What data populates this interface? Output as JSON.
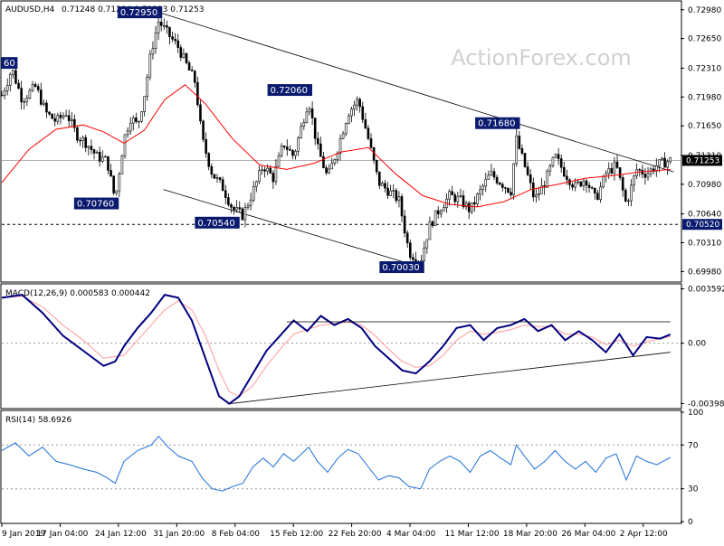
{
  "chart_data": {
    "type": "candlestick",
    "title": "AUDUSD,H4",
    "ohlc_header": "0.71248 0.71294 0.71223 0.71253",
    "watermark": "ActionForex.com",
    "price_pane": {
      "ylim": [
        0.6988,
        0.7305
      ],
      "y_ticks": [
        "0.72980",
        "0.72650",
        "0.72310",
        "0.71980",
        "0.71650",
        "0.71310",
        "0.70980",
        "0.70640",
        "0.70310",
        "0.69980"
      ],
      "y_tick_values": [
        0.7298,
        0.7265,
        0.7231,
        0.7198,
        0.7165,
        0.7131,
        0.7098,
        0.7064,
        0.7031,
        0.6998
      ],
      "current_price": "0.71253",
      "current_price_value": 0.71253,
      "support_level": "0.70520",
      "support_value": 0.7052,
      "callouts": [
        {
          "label": "0.72950",
          "x": 0.231,
          "y": 0.7295
        },
        {
          "label": "0.72060",
          "x": 0.452,
          "y": 0.7206
        },
        {
          "label": "0.71680",
          "x": 0.758,
          "y": 0.7168
        },
        {
          "label": "0.70760",
          "x": 0.167,
          "y": 0.7076
        },
        {
          "label": "0.70540",
          "x": 0.345,
          "y": 0.7054
        },
        {
          "label": "0.70030",
          "x": 0.617,
          "y": 0.7003
        },
        {
          "label": "60",
          "x": 0.0,
          "y": 0.7237
        }
      ],
      "moving_average": [
        [
          0.0,
          0.71
        ],
        [
          0.04,
          0.7138
        ],
        [
          0.08,
          0.7161
        ],
        [
          0.12,
          0.7166
        ],
        [
          0.15,
          0.7158
        ],
        [
          0.18,
          0.7145
        ],
        [
          0.21,
          0.716
        ],
        [
          0.24,
          0.7195
        ],
        [
          0.27,
          0.7212
        ],
        [
          0.3,
          0.719
        ],
        [
          0.34,
          0.715
        ],
        [
          0.38,
          0.712
        ],
        [
          0.42,
          0.7115
        ],
        [
          0.46,
          0.7122
        ],
        [
          0.5,
          0.7135
        ],
        [
          0.54,
          0.714
        ],
        [
          0.58,
          0.711
        ],
        [
          0.62,
          0.7085
        ],
        [
          0.66,
          0.7075
        ],
        [
          0.7,
          0.7072
        ],
        [
          0.74,
          0.7078
        ],
        [
          0.78,
          0.7092
        ],
        [
          0.82,
          0.7098
        ],
        [
          0.86,
          0.7105
        ],
        [
          0.9,
          0.7108
        ],
        [
          0.94,
          0.7112
        ],
        [
          0.985,
          0.7115
        ]
      ],
      "closes": [
        [
          0.0,
          0.72
        ],
        [
          0.015,
          0.723
        ],
        [
          0.03,
          0.7195
        ],
        [
          0.05,
          0.721
        ],
        [
          0.065,
          0.718
        ],
        [
          0.08,
          0.717
        ],
        [
          0.095,
          0.718
        ],
        [
          0.11,
          0.7155
        ],
        [
          0.125,
          0.7145
        ],
        [
          0.14,
          0.713
        ],
        [
          0.155,
          0.7125
        ],
        [
          0.167,
          0.708
        ],
        [
          0.18,
          0.715
        ],
        [
          0.19,
          0.7175
        ],
        [
          0.2,
          0.7165
        ],
        [
          0.21,
          0.72
        ],
        [
          0.22,
          0.725
        ],
        [
          0.231,
          0.7285
        ],
        [
          0.245,
          0.727
        ],
        [
          0.26,
          0.7255
        ],
        [
          0.275,
          0.723
        ],
        [
          0.285,
          0.7215
        ],
        [
          0.295,
          0.715
        ],
        [
          0.31,
          0.711
        ],
        [
          0.325,
          0.7095
        ],
        [
          0.34,
          0.707
        ],
        [
          0.355,
          0.7062
        ],
        [
          0.37,
          0.709
        ],
        [
          0.385,
          0.712
        ],
        [
          0.4,
          0.7105
        ],
        [
          0.415,
          0.7145
        ],
        [
          0.43,
          0.713
        ],
        [
          0.452,
          0.7195
        ],
        [
          0.465,
          0.714
        ],
        [
          0.48,
          0.7105
        ],
        [
          0.495,
          0.714
        ],
        [
          0.51,
          0.718
        ],
        [
          0.525,
          0.7195
        ],
        [
          0.54,
          0.715
        ],
        [
          0.555,
          0.71
        ],
        [
          0.57,
          0.709
        ],
        [
          0.585,
          0.708
        ],
        [
          0.6,
          0.702
        ],
        [
          0.617,
          0.701
        ],
        [
          0.63,
          0.705
        ],
        [
          0.645,
          0.707
        ],
        [
          0.66,
          0.7085
        ],
        [
          0.675,
          0.708
        ],
        [
          0.69,
          0.7068
        ],
        [
          0.705,
          0.709
        ],
        [
          0.72,
          0.711
        ],
        [
          0.735,
          0.71
        ],
        [
          0.75,
          0.709
        ],
        [
          0.758,
          0.715
        ],
        [
          0.77,
          0.712
        ],
        [
          0.785,
          0.708
        ],
        [
          0.8,
          0.71
        ],
        [
          0.815,
          0.713
        ],
        [
          0.83,
          0.711
        ],
        [
          0.845,
          0.7095
        ],
        [
          0.86,
          0.7105
        ],
        [
          0.875,
          0.708
        ],
        [
          0.89,
          0.711
        ],
        [
          0.905,
          0.712
        ],
        [
          0.92,
          0.7075
        ],
        [
          0.935,
          0.7115
        ],
        [
          0.95,
          0.711
        ],
        [
          0.965,
          0.712
        ],
        [
          0.985,
          0.71253
        ]
      ]
    },
    "macd_pane": {
      "label": "MACD(12,26,9) 0.000583 0.000442",
      "ylim": [
        -0.0042,
        0.0038
      ],
      "y_ticks": [
        "0.003592",
        "0.00",
        "-0.003986"
      ],
      "y_tick_values": [
        0.003592,
        0.0,
        -0.003986
      ],
      "macd": [
        [
          0.0,
          0.003
        ],
        [
          0.03,
          0.0032
        ],
        [
          0.06,
          0.002
        ],
        [
          0.09,
          0.0005
        ],
        [
          0.12,
          -0.0005
        ],
        [
          0.15,
          -0.0015
        ],
        [
          0.167,
          -0.0012
        ],
        [
          0.18,
          -0.0002
        ],
        [
          0.2,
          0.001
        ],
        [
          0.22,
          0.002
        ],
        [
          0.24,
          0.0032
        ],
        [
          0.26,
          0.003
        ],
        [
          0.28,
          0.0015
        ],
        [
          0.3,
          -0.001
        ],
        [
          0.32,
          -0.0035
        ],
        [
          0.335,
          -0.004
        ],
        [
          0.35,
          -0.0035
        ],
        [
          0.37,
          -0.002
        ],
        [
          0.39,
          -0.0005
        ],
        [
          0.41,
          0.0005
        ],
        [
          0.43,
          0.0015
        ],
        [
          0.45,
          0.0008
        ],
        [
          0.47,
          0.0018
        ],
        [
          0.49,
          0.0012
        ],
        [
          0.51,
          0.0016
        ],
        [
          0.53,
          0.001
        ],
        [
          0.55,
          -0.0002
        ],
        [
          0.57,
          -0.001
        ],
        [
          0.59,
          -0.0018
        ],
        [
          0.61,
          -0.002
        ],
        [
          0.63,
          -0.0012
        ],
        [
          0.65,
          -0.0002
        ],
        [
          0.67,
          0.001
        ],
        [
          0.69,
          0.0012
        ],
        [
          0.71,
          0.0002
        ],
        [
          0.73,
          0.001
        ],
        [
          0.75,
          0.0012
        ],
        [
          0.77,
          0.0016
        ],
        [
          0.79,
          0.0008
        ],
        [
          0.81,
          0.0012
        ],
        [
          0.83,
          0.0002
        ],
        [
          0.85,
          0.0008
        ],
        [
          0.87,
          0.0002
        ],
        [
          0.89,
          -0.0006
        ],
        [
          0.91,
          0.0006
        ],
        [
          0.93,
          -0.0008
        ],
        [
          0.95,
          0.0004
        ],
        [
          0.97,
          0.0003
        ],
        [
          0.985,
          0.00058
        ]
      ],
      "signal": [
        [
          0.0,
          0.003
        ],
        [
          0.03,
          0.0031
        ],
        [
          0.06,
          0.0024
        ],
        [
          0.09,
          0.0012
        ],
        [
          0.12,
          0.0002
        ],
        [
          0.15,
          -0.001
        ],
        [
          0.18,
          -0.0008
        ],
        [
          0.2,
          0.0002
        ],
        [
          0.22,
          0.0012
        ],
        [
          0.24,
          0.0022
        ],
        [
          0.26,
          0.0028
        ],
        [
          0.28,
          0.0022
        ],
        [
          0.3,
          0.0005
        ],
        [
          0.32,
          -0.0018
        ],
        [
          0.335,
          -0.0032
        ],
        [
          0.35,
          -0.0035
        ],
        [
          0.37,
          -0.0028
        ],
        [
          0.39,
          -0.0015
        ],
        [
          0.41,
          -0.0004
        ],
        [
          0.43,
          0.0006
        ],
        [
          0.45,
          0.0009
        ],
        [
          0.47,
          0.0012
        ],
        [
          0.49,
          0.0013
        ],
        [
          0.51,
          0.0014
        ],
        [
          0.53,
          0.0012
        ],
        [
          0.55,
          0.0005
        ],
        [
          0.57,
          -0.0004
        ],
        [
          0.59,
          -0.0012
        ],
        [
          0.61,
          -0.0016
        ],
        [
          0.63,
          -0.0015
        ],
        [
          0.65,
          -0.0008
        ],
        [
          0.67,
          0.0002
        ],
        [
          0.69,
          0.0008
        ],
        [
          0.71,
          0.0006
        ],
        [
          0.73,
          0.0007
        ],
        [
          0.75,
          0.0009
        ],
        [
          0.77,
          0.0012
        ],
        [
          0.79,
          0.0011
        ],
        [
          0.81,
          0.0011
        ],
        [
          0.83,
          0.0006
        ],
        [
          0.85,
          0.0006
        ],
        [
          0.87,
          0.0004
        ],
        [
          0.89,
          -0.0001
        ],
        [
          0.91,
          0.0002
        ],
        [
          0.93,
          -0.0002
        ],
        [
          0.95,
          0.0001
        ],
        [
          0.97,
          0.0003
        ],
        [
          0.985,
          0.00044
        ]
      ]
    },
    "rsi_pane": {
      "label": "RSI(14) 58.6926",
      "ylim": [
        0,
        100
      ],
      "y_ticks": [
        "100",
        "70",
        "30",
        "0"
      ],
      "y_tick_values": [
        100,
        70,
        30,
        0
      ],
      "rsi": [
        [
          0.0,
          65
        ],
        [
          0.02,
          72
        ],
        [
          0.04,
          60
        ],
        [
          0.06,
          68
        ],
        [
          0.08,
          55
        ],
        [
          0.1,
          52
        ],
        [
          0.12,
          48
        ],
        [
          0.14,
          45
        ],
        [
          0.155,
          40
        ],
        [
          0.167,
          35
        ],
        [
          0.18,
          55
        ],
        [
          0.2,
          65
        ],
        [
          0.22,
          70
        ],
        [
          0.231,
          78
        ],
        [
          0.245,
          68
        ],
        [
          0.26,
          60
        ],
        [
          0.28,
          55
        ],
        [
          0.295,
          40
        ],
        [
          0.31,
          30
        ],
        [
          0.325,
          28
        ],
        [
          0.34,
          32
        ],
        [
          0.355,
          35
        ],
        [
          0.37,
          50
        ],
        [
          0.385,
          58
        ],
        [
          0.4,
          50
        ],
        [
          0.415,
          62
        ],
        [
          0.43,
          55
        ],
        [
          0.452,
          68
        ],
        [
          0.465,
          55
        ],
        [
          0.48,
          45
        ],
        [
          0.495,
          58
        ],
        [
          0.51,
          66
        ],
        [
          0.525,
          62
        ],
        [
          0.54,
          50
        ],
        [
          0.555,
          38
        ],
        [
          0.57,
          42
        ],
        [
          0.585,
          40
        ],
        [
          0.6,
          32
        ],
        [
          0.617,
          30
        ],
        [
          0.63,
          48
        ],
        [
          0.645,
          55
        ],
        [
          0.66,
          60
        ],
        [
          0.675,
          55
        ],
        [
          0.69,
          45
        ],
        [
          0.705,
          60
        ],
        [
          0.72,
          65
        ],
        [
          0.735,
          58
        ],
        [
          0.75,
          52
        ],
        [
          0.758,
          70
        ],
        [
          0.77,
          60
        ],
        [
          0.785,
          48
        ],
        [
          0.8,
          55
        ],
        [
          0.815,
          65
        ],
        [
          0.83,
          55
        ],
        [
          0.845,
          48
        ],
        [
          0.86,
          55
        ],
        [
          0.875,
          45
        ],
        [
          0.89,
          58
        ],
        [
          0.905,
          62
        ],
        [
          0.92,
          38
        ],
        [
          0.935,
          60
        ],
        [
          0.95,
          55
        ],
        [
          0.965,
          52
        ],
        [
          0.985,
          58.69
        ]
      ]
    },
    "x_ticks": [
      "9 Jan 2019",
      "17 Jan 04:00",
      "24 Jan 12:00",
      "31 Jan 20:00",
      "8 Feb 04:00",
      "15 Feb 12:00",
      "22 Feb 20:00",
      "4 Mar 04:00",
      "11 Mar 12:00",
      "18 Mar 20:00",
      "26 Mar 04:00",
      "2 Apr 12:00"
    ],
    "colors": {
      "ma": "#ff0000",
      "rsi": "#1e6fd9",
      "macd": "#000080",
      "signal": "#ff9999",
      "callout_bg": "#0a1a6e",
      "price_box": "#000000"
    },
    "grid": false
  }
}
